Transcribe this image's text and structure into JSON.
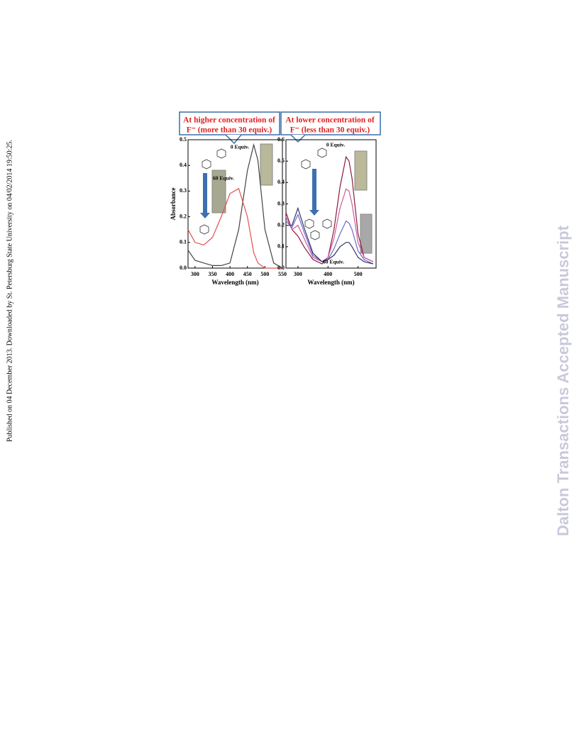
{
  "side_note": "Published on 04 December 2013. Downloaded by St. Petersburg State University on 04/02/2014 19:50:25.",
  "watermark": "Dalton Transactions Accepted Manuscript",
  "chart_data": [
    {
      "type": "line",
      "title_lines": [
        "At higher concentration of",
        "F⁻ (more than 30 equiv.)"
      ],
      "x_label": "Wavelength (nm)",
      "y_label": "Absorbance",
      "annotations": [
        "0 Equiv.",
        "60 Equiv."
      ],
      "x": [
        280,
        300,
        325,
        350,
        375,
        400,
        425,
        450,
        468,
        480,
        500,
        525,
        550
      ],
      "series": [
        {
          "color": "#444444",
          "values": [
            0.07,
            0.03,
            0.02,
            0.01,
            0.01,
            0.02,
            0.15,
            0.38,
            0.48,
            0.42,
            0.15,
            0.02,
            0.0
          ]
        },
        {
          "color": "#e05050",
          "values": [
            0.15,
            0.1,
            0.09,
            0.12,
            0.2,
            0.29,
            0.31,
            0.2,
            0.06,
            0.02,
            0.0,
            0.0,
            0.0
          ]
        }
      ],
      "xlim": [
        280,
        550
      ],
      "ylim": [
        0,
        0.5
      ],
      "xticks": [
        300,
        350,
        400,
        450,
        500,
        550
      ],
      "yticks": [
        {
          "value": 0,
          "label": "0.0"
        },
        0.1,
        0.2,
        0.3,
        0.4,
        0.5
      ]
    },
    {
      "type": "line",
      "title_lines": [
        "At lower concentration of",
        "F⁻ (less than 30 equiv.)"
      ],
      "x_label": "Wavelength (nm)",
      "annotations": [
        "0 Equiv.",
        "60 Equiv."
      ],
      "x": [
        260,
        280,
        300,
        320,
        350,
        380,
        400,
        420,
        440,
        460,
        470,
        480,
        500,
        520,
        550
      ],
      "series": [
        {
          "color": "#8a1a3a",
          "values": [
            0.26,
            0.18,
            0.15,
            0.1,
            0.04,
            0.02,
            0.05,
            0.18,
            0.38,
            0.52,
            0.5,
            0.42,
            0.16,
            0.05,
            0.03
          ]
        },
        {
          "color": "#d05aa0",
          "values": [
            0.24,
            0.18,
            0.2,
            0.14,
            0.05,
            0.03,
            0.05,
            0.14,
            0.28,
            0.37,
            0.36,
            0.3,
            0.12,
            0.05,
            0.03
          ]
        },
        {
          "color": "#6a6ad0",
          "values": [
            0.22,
            0.19,
            0.25,
            0.17,
            0.06,
            0.03,
            0.04,
            0.09,
            0.16,
            0.22,
            0.21,
            0.18,
            0.08,
            0.04,
            0.02
          ]
        },
        {
          "color": "#333366",
          "values": [
            0.2,
            0.2,
            0.28,
            0.19,
            0.07,
            0.03,
            0.04,
            0.06,
            0.1,
            0.12,
            0.12,
            0.1,
            0.05,
            0.03,
            0.02
          ]
        }
      ],
      "xlim": [
        260,
        560
      ],
      "ylim": [
        0,
        0.6
      ],
      "xticks": [
        300,
        400,
        500
      ],
      "yticks": [
        {
          "value": 0,
          "label": "0.0"
        },
        0.1,
        0.2,
        0.3,
        0.4,
        0.5,
        0.6
      ]
    }
  ]
}
